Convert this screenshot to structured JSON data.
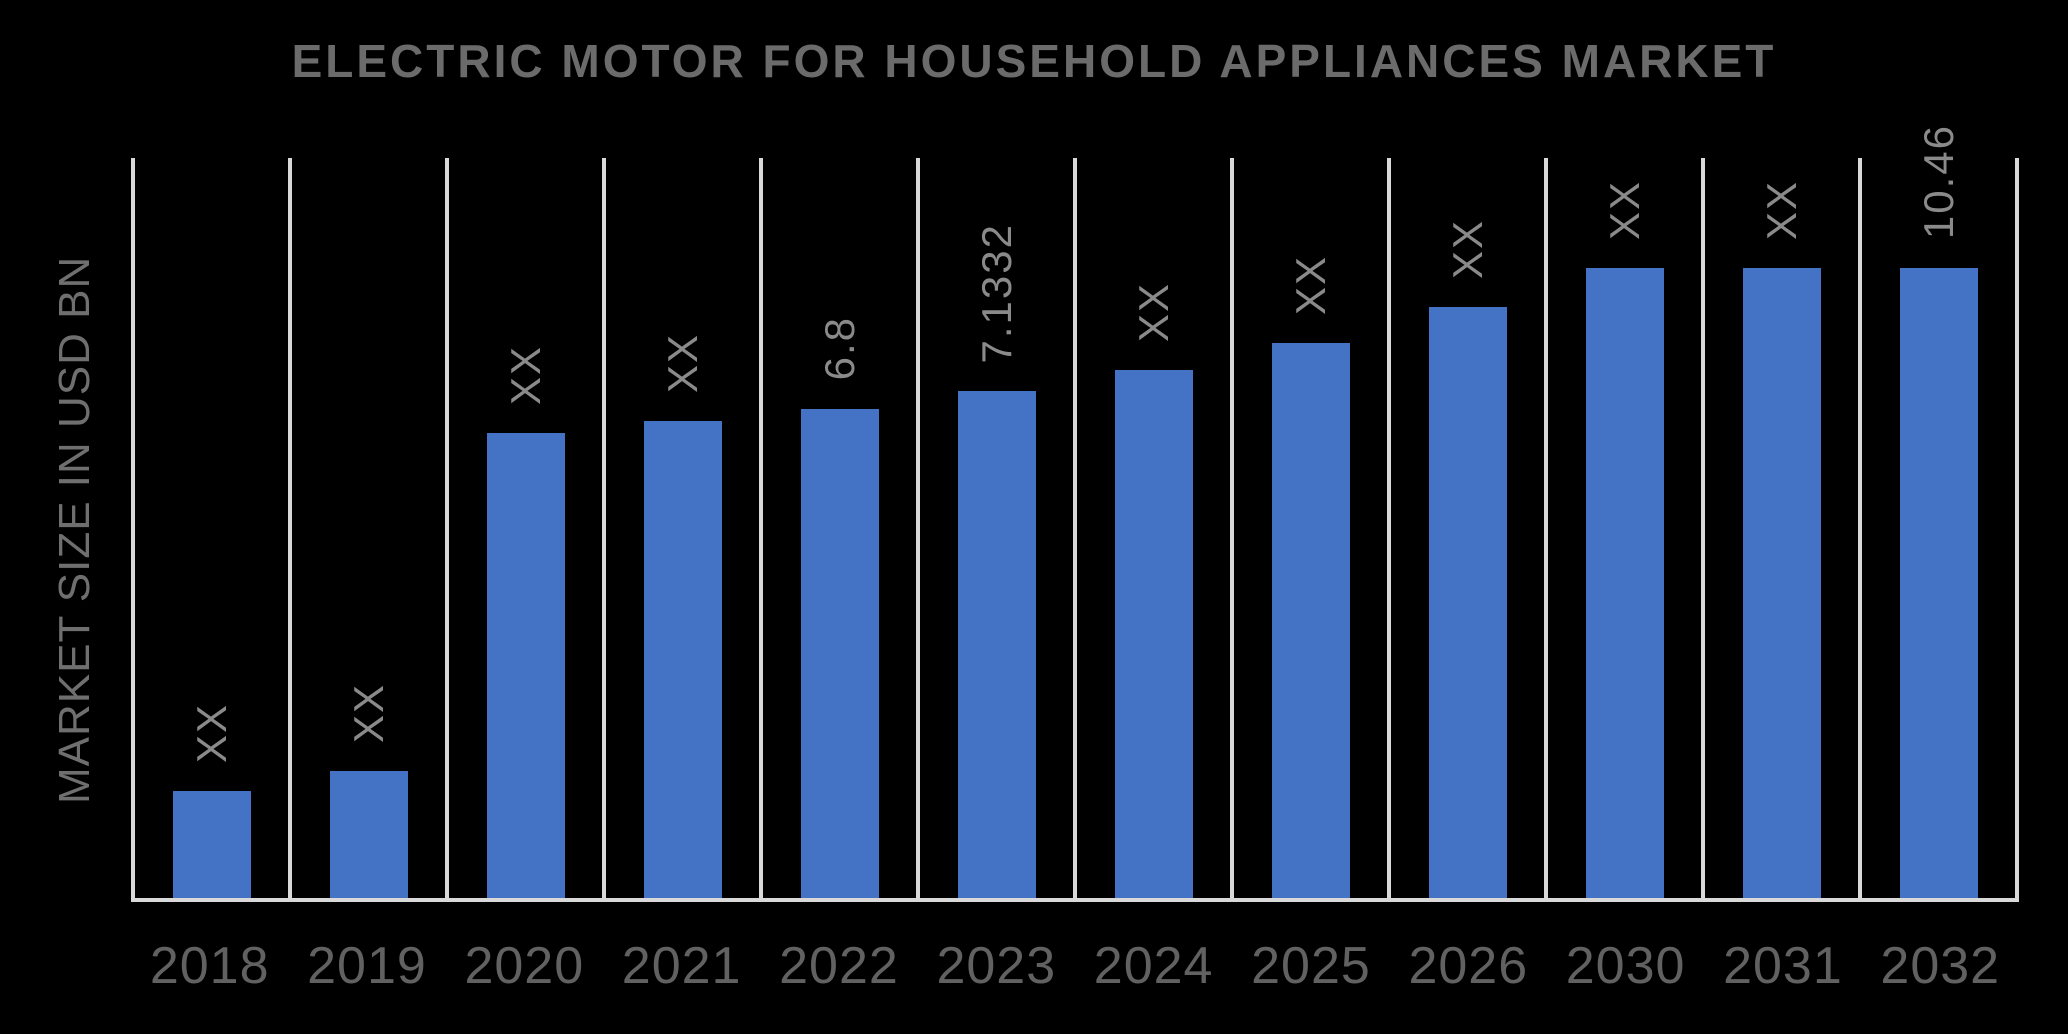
{
  "chart_data": {
    "type": "bar",
    "title": "ELECTRIC MOTOR FOR HOUSEHOLD APPLIANCES MARKET",
    "ylabel": "MARKET SIZE IN USD BN",
    "xlabel": "",
    "unit": "USD BN",
    "legend": "none",
    "gridlines": "vertical-only",
    "categories": [
      "2018",
      "2019",
      "2020",
      "2021",
      "2022",
      "2023",
      "2024",
      "2025",
      "2026",
      "2030",
      "2031",
      "2032"
    ],
    "bars": [
      {
        "year": "2018",
        "label": "XX",
        "value": null,
        "height_pct": 14.5
      },
      {
        "year": "2019",
        "label": "XX",
        "value": null,
        "height_pct": 17.2
      },
      {
        "year": "2020",
        "label": "XX",
        "value": null,
        "height_pct": 62.9
      },
      {
        "year": "2021",
        "label": "XX",
        "value": null,
        "height_pct": 64.4
      },
      {
        "year": "2022",
        "label": "6.8",
        "value": 6.8,
        "height_pct": 66.1
      },
      {
        "year": "2023",
        "label": "7.1332",
        "value": 7.1332,
        "height_pct": 68.5
      },
      {
        "year": "2024",
        "label": "XX",
        "value": null,
        "height_pct": 71.4
      },
      {
        "year": "2025",
        "label": "XX",
        "value": null,
        "height_pct": 75.0
      },
      {
        "year": "2026",
        "label": "XX",
        "value": null,
        "height_pct": 79.8
      },
      {
        "year": "2030",
        "label": "XX",
        "value": null,
        "height_pct": 85.2
      },
      {
        "year": "2031",
        "label": "XX",
        "value": null,
        "height_pct": 85.2
      },
      {
        "year": "2032",
        "label": "10.46",
        "value": 10.46,
        "height_pct": 85.2
      }
    ],
    "colors": {
      "background": "#000000",
      "bar": "#4472c4",
      "gridline": "#d9d9d9",
      "title_text": "#6b6b6b",
      "y_axis_label_text": "#6f6f6f",
      "data_label_text": "#8a8a8a",
      "category_label_text": "#616161"
    }
  }
}
